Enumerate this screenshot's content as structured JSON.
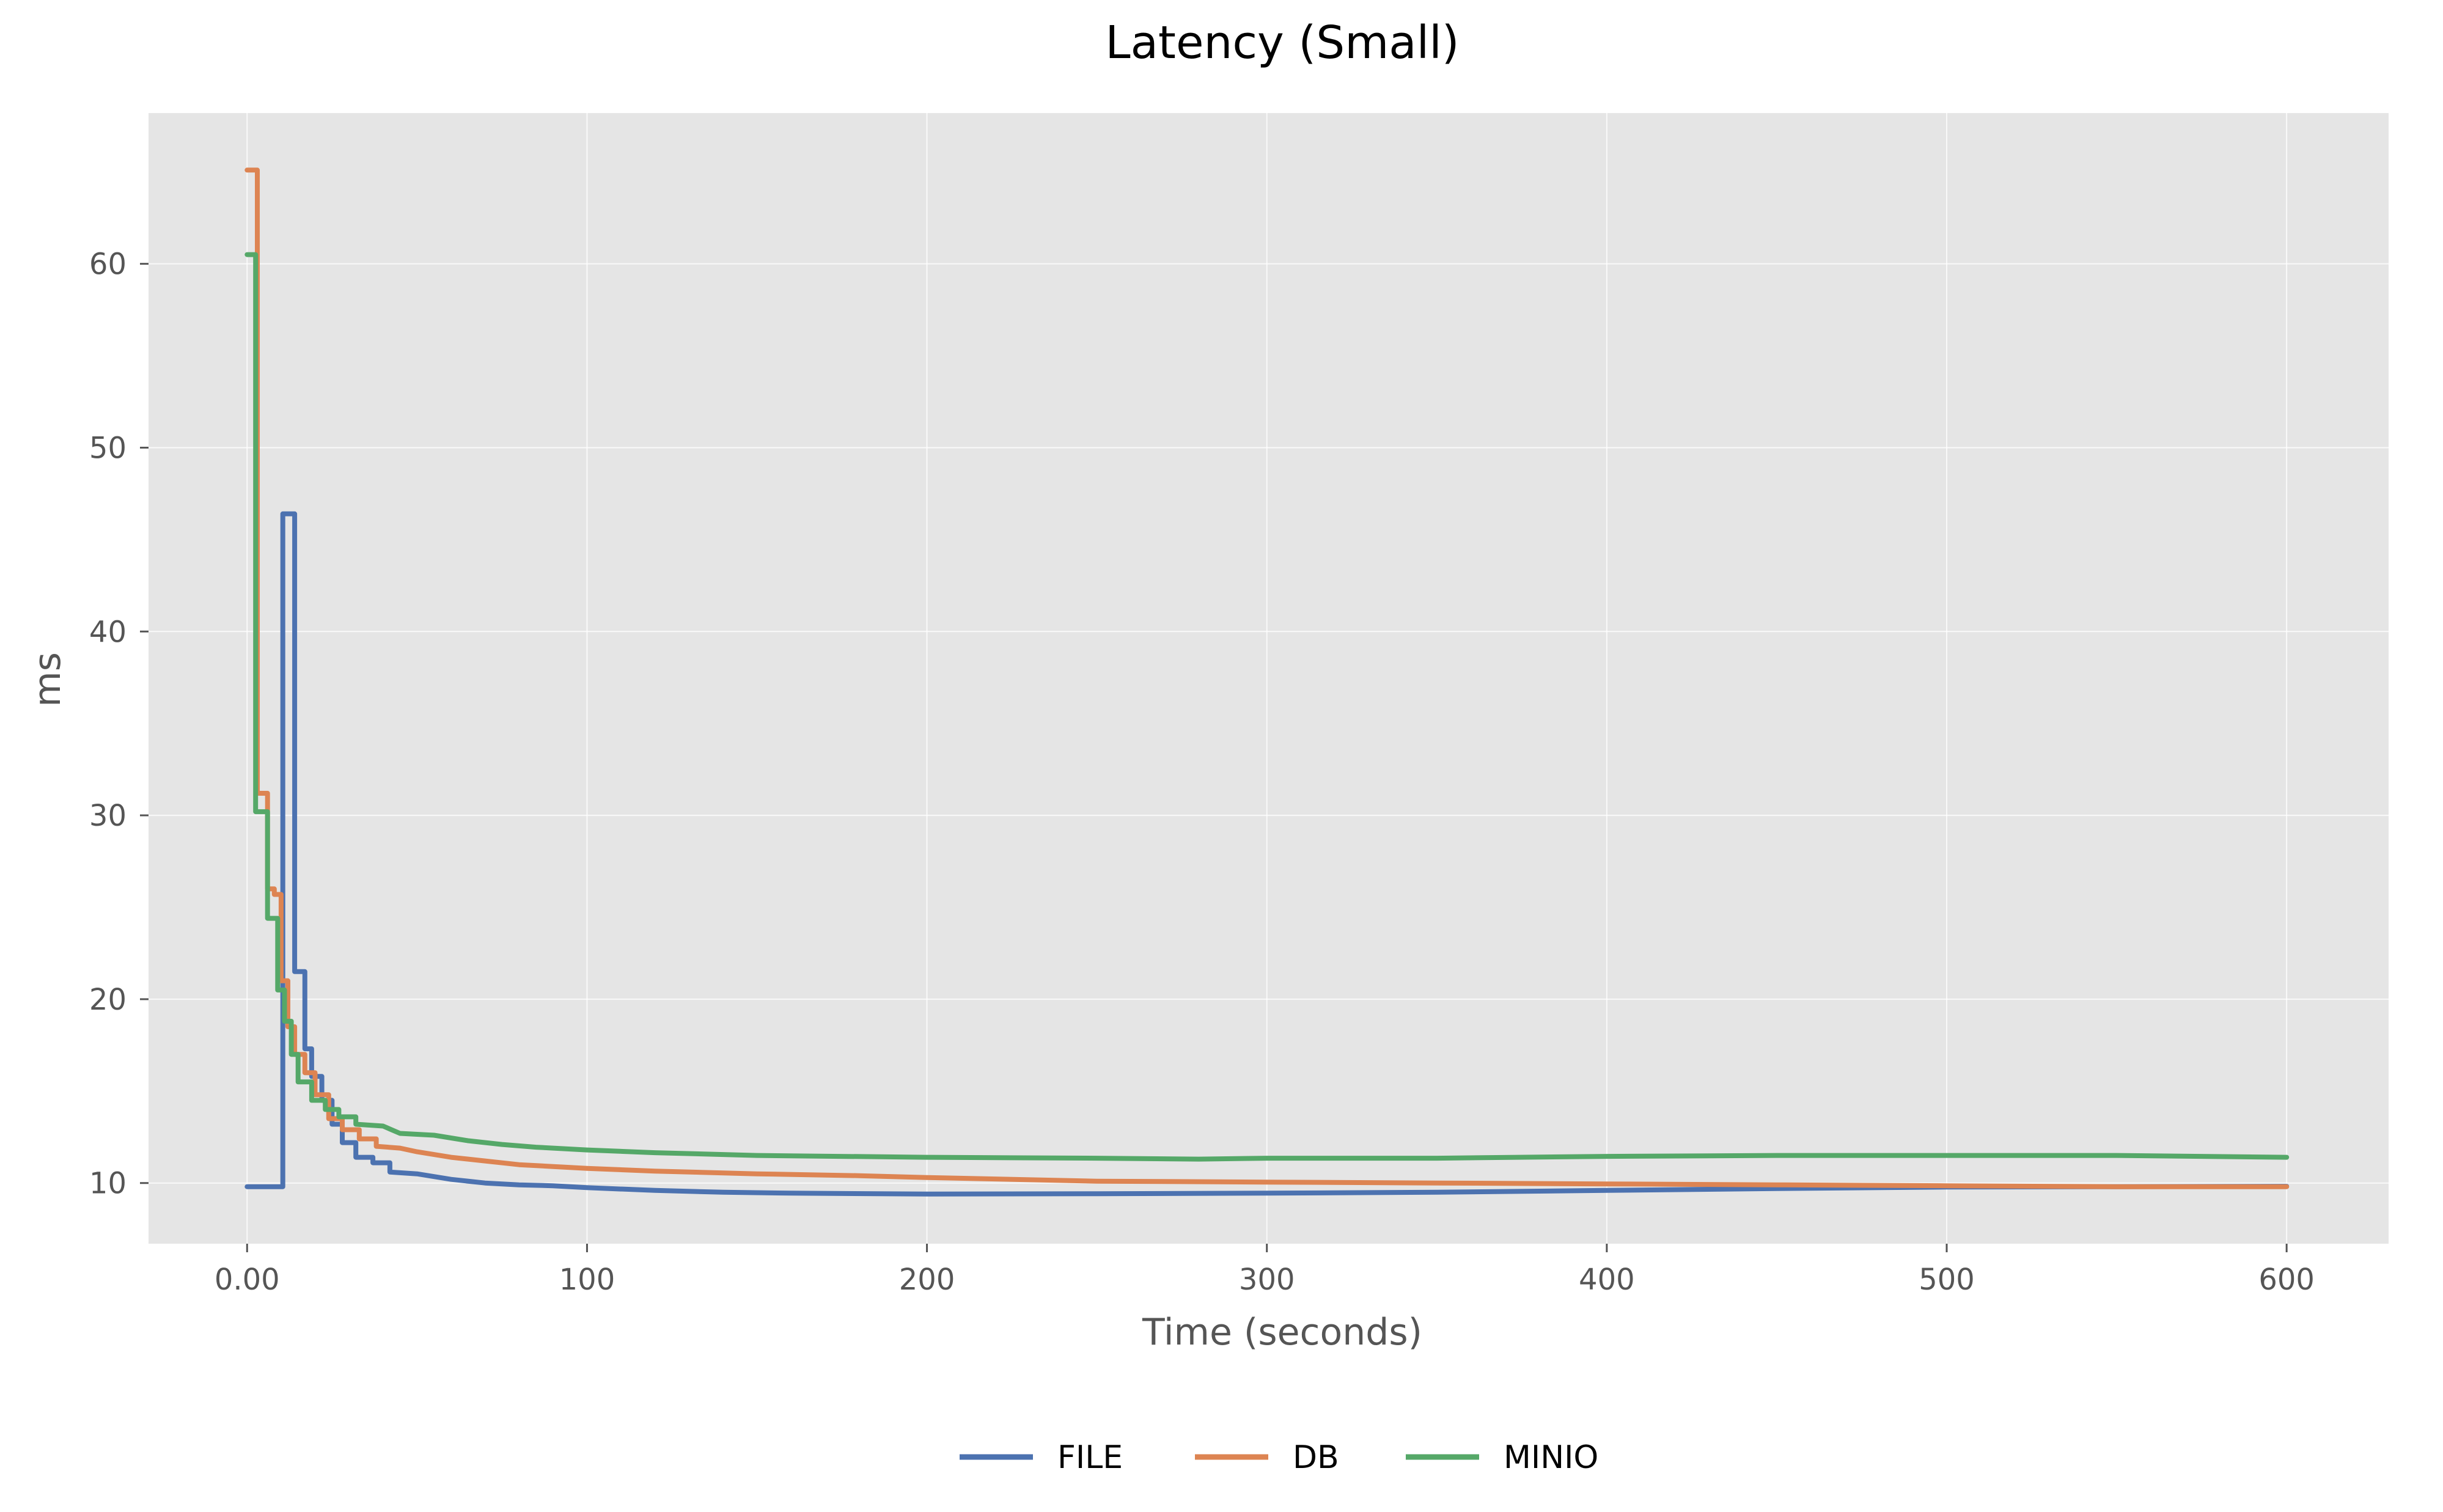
{
  "chart_data": {
    "type": "line",
    "title": "Latency (Small)",
    "xlabel": "Time (seconds)",
    "ylabel": "ms",
    "xlim": [
      -29,
      630
    ],
    "ylim": [
      6.7,
      68.2
    ],
    "x_ticks": [
      0,
      100,
      200,
      300,
      400,
      500,
      600
    ],
    "x_tick_labels": [
      "0.00",
      "100",
      "200",
      "300",
      "400",
      "500",
      "600"
    ],
    "y_ticks": [
      10,
      20,
      30,
      40,
      50,
      60
    ],
    "y_tick_labels": [
      "10",
      "20",
      "30",
      "40",
      "50",
      "60"
    ],
    "grid": true,
    "legend_position": "bottom-center",
    "series": [
      {
        "name": "FILE",
        "color": "#4c72b0",
        "points": [
          [
            0,
            9.8
          ],
          [
            10.5,
            9.8
          ],
          [
            10.5,
            46.4
          ],
          [
            14,
            46.4
          ],
          [
            14,
            21.5
          ],
          [
            17,
            21.5
          ],
          [
            17,
            17.3
          ],
          [
            19,
            17.3
          ],
          [
            19,
            15.8
          ],
          [
            22,
            15.8
          ],
          [
            22,
            14.5
          ],
          [
            25,
            14.5
          ],
          [
            25,
            13.2
          ],
          [
            28,
            13.2
          ],
          [
            28,
            12.2
          ],
          [
            32,
            12.2
          ],
          [
            32,
            11.4
          ],
          [
            37,
            11.4
          ],
          [
            37,
            11.1
          ],
          [
            42,
            11.1
          ],
          [
            42,
            10.6
          ],
          [
            50,
            10.5
          ],
          [
            60,
            10.2
          ],
          [
            70,
            10.0
          ],
          [
            80,
            9.9
          ],
          [
            90,
            9.85
          ],
          [
            100,
            9.75
          ],
          [
            120,
            9.6
          ],
          [
            140,
            9.5
          ],
          [
            160,
            9.45
          ],
          [
            200,
            9.4
          ],
          [
            250,
            9.42
          ],
          [
            300,
            9.45
          ],
          [
            350,
            9.5
          ],
          [
            400,
            9.6
          ],
          [
            450,
            9.7
          ],
          [
            500,
            9.78
          ],
          [
            550,
            9.8
          ],
          [
            600,
            9.82
          ]
        ]
      },
      {
        "name": "DB",
        "color": "#dd8452",
        "points": [
          [
            0,
            65.1
          ],
          [
            3,
            65.1
          ],
          [
            3,
            31.2
          ],
          [
            6,
            31.2
          ],
          [
            6,
            26.0
          ],
          [
            8,
            26.0
          ],
          [
            8,
            25.7
          ],
          [
            10,
            25.7
          ],
          [
            10,
            21.0
          ],
          [
            12,
            21.0
          ],
          [
            12,
            18.5
          ],
          [
            14,
            18.5
          ],
          [
            14,
            17.0
          ],
          [
            17,
            17.0
          ],
          [
            17,
            16.0
          ],
          [
            20,
            16.0
          ],
          [
            20,
            14.8
          ],
          [
            24,
            14.8
          ],
          [
            24,
            13.5
          ],
          [
            28,
            13.5
          ],
          [
            28,
            12.9
          ],
          [
            33,
            12.9
          ],
          [
            33,
            12.4
          ],
          [
            38,
            12.4
          ],
          [
            38,
            12.0
          ],
          [
            45,
            11.9
          ],
          [
            50,
            11.7
          ],
          [
            60,
            11.4
          ],
          [
            70,
            11.2
          ],
          [
            80,
            11.0
          ],
          [
            90,
            10.9
          ],
          [
            100,
            10.8
          ],
          [
            120,
            10.65
          ],
          [
            150,
            10.5
          ],
          [
            180,
            10.4
          ],
          [
            200,
            10.3
          ],
          [
            250,
            10.1
          ],
          [
            300,
            10.05
          ],
          [
            350,
            10.0
          ],
          [
            400,
            9.95
          ],
          [
            450,
            9.9
          ],
          [
            500,
            9.85
          ],
          [
            550,
            9.8
          ],
          [
            600,
            9.8
          ]
        ]
      },
      {
        "name": "MINIO",
        "color": "#55a868",
        "points": [
          [
            0,
            60.5
          ],
          [
            2.5,
            60.5
          ],
          [
            2.5,
            30.2
          ],
          [
            6,
            30.2
          ],
          [
            6,
            24.4
          ],
          [
            9,
            24.4
          ],
          [
            9,
            20.5
          ],
          [
            11,
            20.5
          ],
          [
            11,
            18.8
          ],
          [
            13,
            18.8
          ],
          [
            13,
            17.0
          ],
          [
            15,
            17.0
          ],
          [
            15,
            15.5
          ],
          [
            19,
            15.5
          ],
          [
            19,
            14.5
          ],
          [
            23,
            14.5
          ],
          [
            23,
            14.0
          ],
          [
            27,
            14.0
          ],
          [
            27,
            13.6
          ],
          [
            32,
            13.6
          ],
          [
            32,
            13.2
          ],
          [
            40,
            13.1
          ],
          [
            45,
            12.7
          ],
          [
            55,
            12.6
          ],
          [
            65,
            12.3
          ],
          [
            75,
            12.1
          ],
          [
            85,
            11.95
          ],
          [
            100,
            11.8
          ],
          [
            120,
            11.65
          ],
          [
            150,
            11.5
          ],
          [
            200,
            11.4
          ],
          [
            250,
            11.35
          ],
          [
            280,
            11.3
          ],
          [
            300,
            11.35
          ],
          [
            350,
            11.35
          ],
          [
            400,
            11.45
          ],
          [
            450,
            11.5
          ],
          [
            500,
            11.5
          ],
          [
            550,
            11.5
          ],
          [
            600,
            11.4
          ]
        ]
      }
    ]
  }
}
